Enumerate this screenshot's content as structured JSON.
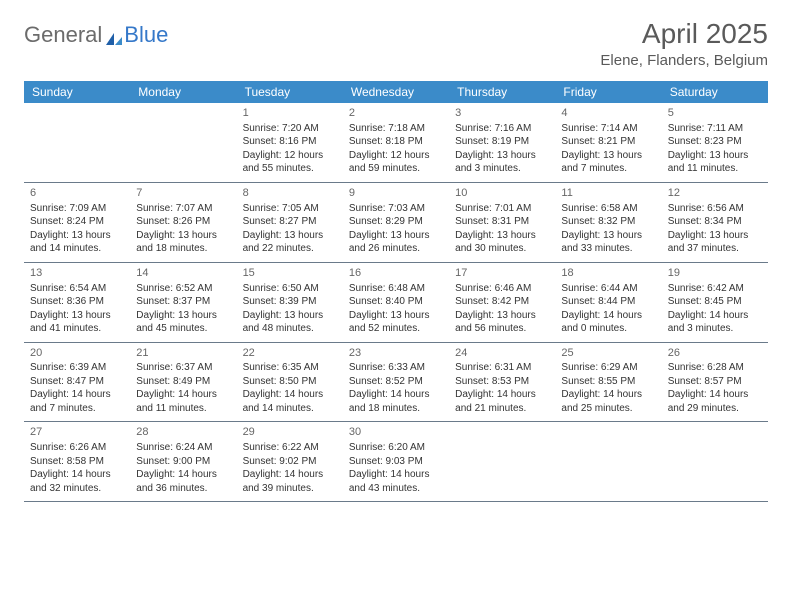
{
  "logo": {
    "part1": "General",
    "part2": "Blue"
  },
  "title": "April 2025",
  "subtitle": "Elene, Flanders, Belgium",
  "colors": {
    "header_bg": "#3b8bc9",
    "header_text": "#ffffff",
    "row_border": "#6a7a8a",
    "title_color": "#5a5a5a",
    "text_color": "#333333",
    "logo_blue": "#3578c9",
    "logo_gray": "#6b6b6b",
    "page_bg": "#ffffff"
  },
  "day_headers": [
    "Sunday",
    "Monday",
    "Tuesday",
    "Wednesday",
    "Thursday",
    "Friday",
    "Saturday"
  ],
  "weeks": [
    [
      null,
      null,
      {
        "n": "1",
        "sr": "Sunrise: 7:20 AM",
        "ss": "Sunset: 8:16 PM",
        "dl": "Daylight: 12 hours and 55 minutes."
      },
      {
        "n": "2",
        "sr": "Sunrise: 7:18 AM",
        "ss": "Sunset: 8:18 PM",
        "dl": "Daylight: 12 hours and 59 minutes."
      },
      {
        "n": "3",
        "sr": "Sunrise: 7:16 AM",
        "ss": "Sunset: 8:19 PM",
        "dl": "Daylight: 13 hours and 3 minutes."
      },
      {
        "n": "4",
        "sr": "Sunrise: 7:14 AM",
        "ss": "Sunset: 8:21 PM",
        "dl": "Daylight: 13 hours and 7 minutes."
      },
      {
        "n": "5",
        "sr": "Sunrise: 7:11 AM",
        "ss": "Sunset: 8:23 PM",
        "dl": "Daylight: 13 hours and 11 minutes."
      }
    ],
    [
      {
        "n": "6",
        "sr": "Sunrise: 7:09 AM",
        "ss": "Sunset: 8:24 PM",
        "dl": "Daylight: 13 hours and 14 minutes."
      },
      {
        "n": "7",
        "sr": "Sunrise: 7:07 AM",
        "ss": "Sunset: 8:26 PM",
        "dl": "Daylight: 13 hours and 18 minutes."
      },
      {
        "n": "8",
        "sr": "Sunrise: 7:05 AM",
        "ss": "Sunset: 8:27 PM",
        "dl": "Daylight: 13 hours and 22 minutes."
      },
      {
        "n": "9",
        "sr": "Sunrise: 7:03 AM",
        "ss": "Sunset: 8:29 PM",
        "dl": "Daylight: 13 hours and 26 minutes."
      },
      {
        "n": "10",
        "sr": "Sunrise: 7:01 AM",
        "ss": "Sunset: 8:31 PM",
        "dl": "Daylight: 13 hours and 30 minutes."
      },
      {
        "n": "11",
        "sr": "Sunrise: 6:58 AM",
        "ss": "Sunset: 8:32 PM",
        "dl": "Daylight: 13 hours and 33 minutes."
      },
      {
        "n": "12",
        "sr": "Sunrise: 6:56 AM",
        "ss": "Sunset: 8:34 PM",
        "dl": "Daylight: 13 hours and 37 minutes."
      }
    ],
    [
      {
        "n": "13",
        "sr": "Sunrise: 6:54 AM",
        "ss": "Sunset: 8:36 PM",
        "dl": "Daylight: 13 hours and 41 minutes."
      },
      {
        "n": "14",
        "sr": "Sunrise: 6:52 AM",
        "ss": "Sunset: 8:37 PM",
        "dl": "Daylight: 13 hours and 45 minutes."
      },
      {
        "n": "15",
        "sr": "Sunrise: 6:50 AM",
        "ss": "Sunset: 8:39 PM",
        "dl": "Daylight: 13 hours and 48 minutes."
      },
      {
        "n": "16",
        "sr": "Sunrise: 6:48 AM",
        "ss": "Sunset: 8:40 PM",
        "dl": "Daylight: 13 hours and 52 minutes."
      },
      {
        "n": "17",
        "sr": "Sunrise: 6:46 AM",
        "ss": "Sunset: 8:42 PM",
        "dl": "Daylight: 13 hours and 56 minutes."
      },
      {
        "n": "18",
        "sr": "Sunrise: 6:44 AM",
        "ss": "Sunset: 8:44 PM",
        "dl": "Daylight: 14 hours and 0 minutes."
      },
      {
        "n": "19",
        "sr": "Sunrise: 6:42 AM",
        "ss": "Sunset: 8:45 PM",
        "dl": "Daylight: 14 hours and 3 minutes."
      }
    ],
    [
      {
        "n": "20",
        "sr": "Sunrise: 6:39 AM",
        "ss": "Sunset: 8:47 PM",
        "dl": "Daylight: 14 hours and 7 minutes."
      },
      {
        "n": "21",
        "sr": "Sunrise: 6:37 AM",
        "ss": "Sunset: 8:49 PM",
        "dl": "Daylight: 14 hours and 11 minutes."
      },
      {
        "n": "22",
        "sr": "Sunrise: 6:35 AM",
        "ss": "Sunset: 8:50 PM",
        "dl": "Daylight: 14 hours and 14 minutes."
      },
      {
        "n": "23",
        "sr": "Sunrise: 6:33 AM",
        "ss": "Sunset: 8:52 PM",
        "dl": "Daylight: 14 hours and 18 minutes."
      },
      {
        "n": "24",
        "sr": "Sunrise: 6:31 AM",
        "ss": "Sunset: 8:53 PM",
        "dl": "Daylight: 14 hours and 21 minutes."
      },
      {
        "n": "25",
        "sr": "Sunrise: 6:29 AM",
        "ss": "Sunset: 8:55 PM",
        "dl": "Daylight: 14 hours and 25 minutes."
      },
      {
        "n": "26",
        "sr": "Sunrise: 6:28 AM",
        "ss": "Sunset: 8:57 PM",
        "dl": "Daylight: 14 hours and 29 minutes."
      }
    ],
    [
      {
        "n": "27",
        "sr": "Sunrise: 6:26 AM",
        "ss": "Sunset: 8:58 PM",
        "dl": "Daylight: 14 hours and 32 minutes."
      },
      {
        "n": "28",
        "sr": "Sunrise: 6:24 AM",
        "ss": "Sunset: 9:00 PM",
        "dl": "Daylight: 14 hours and 36 minutes."
      },
      {
        "n": "29",
        "sr": "Sunrise: 6:22 AM",
        "ss": "Sunset: 9:02 PM",
        "dl": "Daylight: 14 hours and 39 minutes."
      },
      {
        "n": "30",
        "sr": "Sunrise: 6:20 AM",
        "ss": "Sunset: 9:03 PM",
        "dl": "Daylight: 14 hours and 43 minutes."
      },
      null,
      null,
      null
    ]
  ]
}
